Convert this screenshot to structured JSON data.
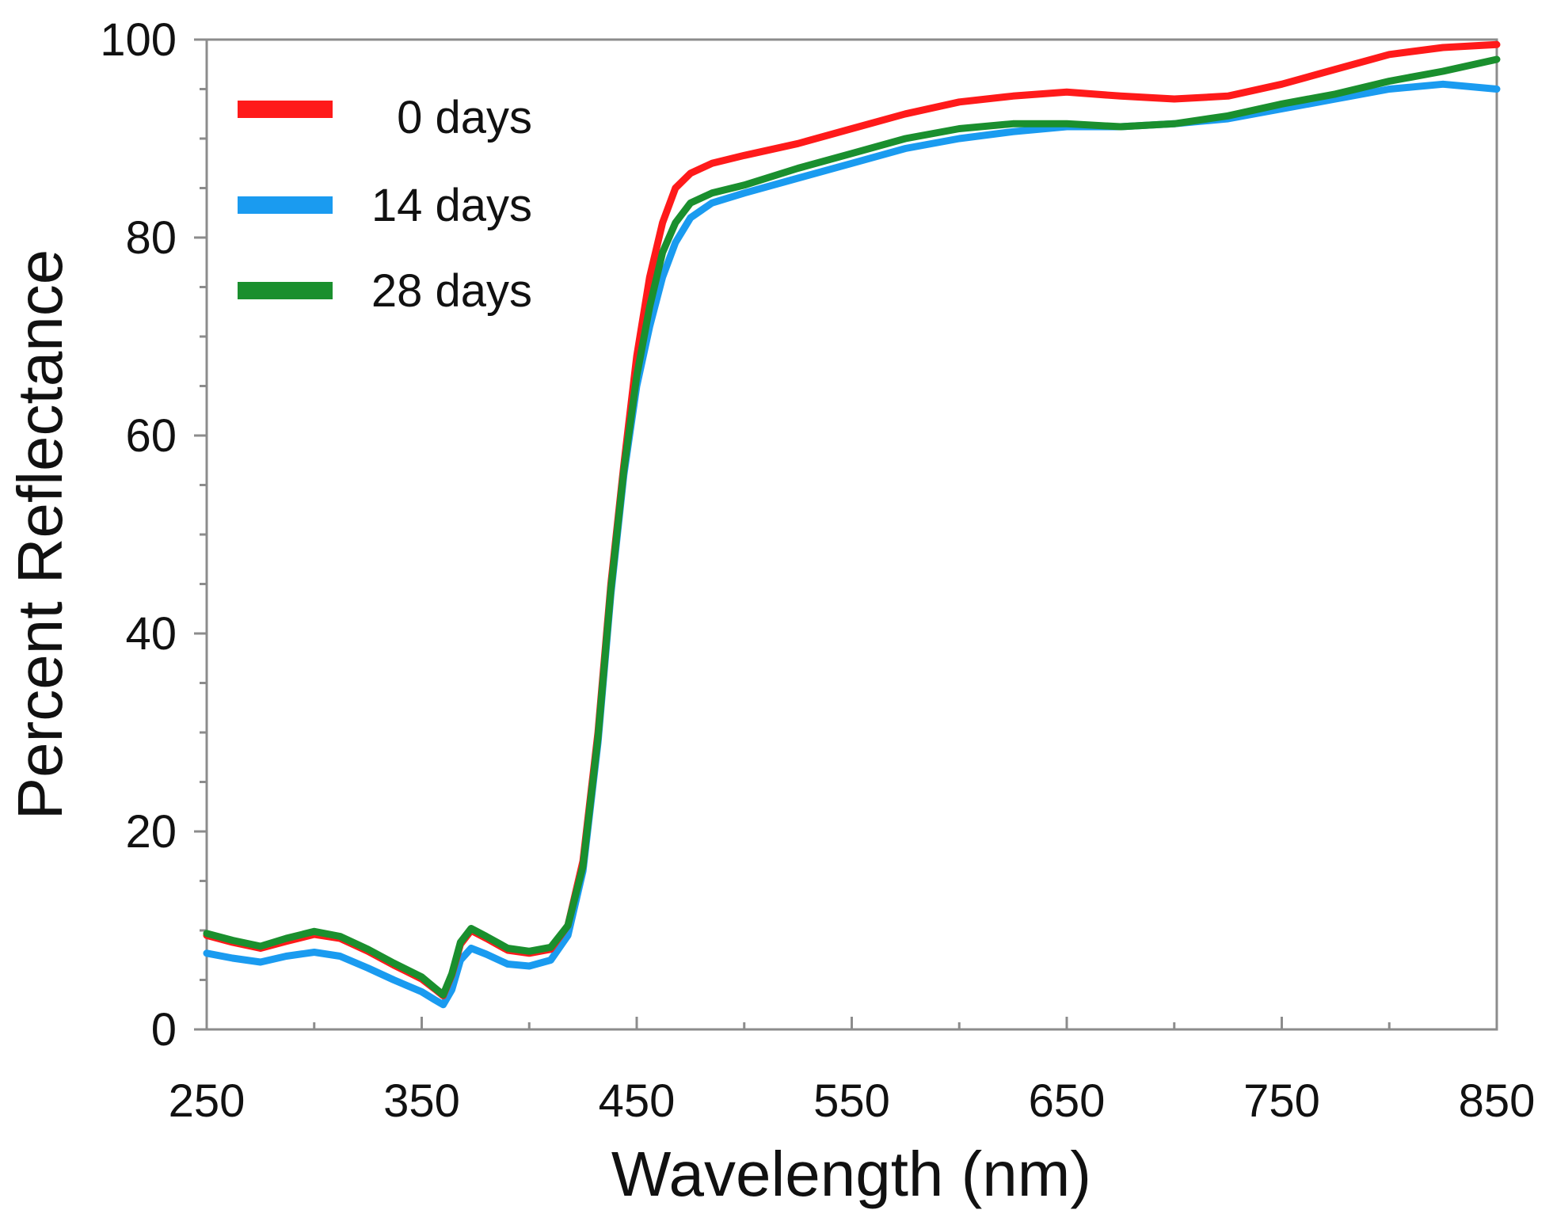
{
  "chart_data": {
    "type": "line",
    "title": "",
    "xlabel": "Wavelength (nm)",
    "ylabel": "Percent Reflectance",
    "xlim": [
      250,
      850
    ],
    "ylim": [
      0,
      100
    ],
    "xticks": [
      250,
      350,
      450,
      550,
      650,
      750,
      850
    ],
    "xtick_labels": [
      "250",
      "350",
      "450",
      "550",
      "650",
      "750",
      "850"
    ],
    "yticks": [
      0,
      20,
      40,
      60,
      80,
      100
    ],
    "ytick_labels": [
      "0",
      "20",
      "40",
      "60",
      "80",
      "100"
    ],
    "legend_position": "top-left",
    "x": [
      250,
      262,
      275,
      287,
      300,
      312,
      325,
      337,
      350,
      356,
      360,
      364,
      368,
      373,
      380,
      390,
      400,
      410,
      418,
      425,
      432,
      438,
      444,
      450,
      456,
      462,
      468,
      475,
      485,
      500,
      525,
      550,
      575,
      600,
      625,
      650,
      675,
      700,
      725,
      750,
      775,
      800,
      825,
      850
    ],
    "series": [
      {
        "name": "0 days",
        "label": " 0 days",
        "color": "#ff1a1a",
        "values": [
          9.5,
          8.8,
          8.2,
          8.9,
          9.6,
          9.2,
          7.9,
          6.5,
          5.1,
          4.1,
          3.4,
          5.5,
          8.6,
          10.0,
          9.2,
          8.0,
          7.7,
          8.1,
          10.5,
          17.0,
          30.0,
          45.0,
          57.0,
          68.0,
          76.0,
          81.5,
          85.0,
          86.5,
          87.5,
          88.3,
          89.5,
          91.0,
          92.5,
          93.7,
          94.3,
          94.7,
          94.3,
          94.0,
          94.3,
          95.5,
          97.0,
          98.5,
          99.2,
          99.5
        ]
      },
      {
        "name": "14 days",
        "label": "14 days",
        "color": "#1a9bf0",
        "values": [
          7.7,
          7.2,
          6.8,
          7.4,
          7.8,
          7.4,
          6.2,
          5.0,
          3.8,
          3.0,
          2.5,
          4.0,
          7.0,
          8.2,
          7.6,
          6.6,
          6.4,
          7.0,
          9.5,
          16.0,
          29.0,
          44.0,
          56.0,
          65.0,
          71.0,
          76.0,
          79.5,
          82.0,
          83.5,
          84.5,
          86.0,
          87.5,
          89.0,
          90.0,
          90.7,
          91.2,
          91.2,
          91.5,
          92.0,
          93.0,
          94.0,
          95.0,
          95.5,
          95.0
        ]
      },
      {
        "name": "28 days",
        "label": "28 days",
        "color": "#1a8f2e",
        "values": [
          9.7,
          9.0,
          8.4,
          9.2,
          9.9,
          9.4,
          8.1,
          6.7,
          5.3,
          4.2,
          3.5,
          5.6,
          8.8,
          10.2,
          9.4,
          8.2,
          7.9,
          8.3,
          10.5,
          16.5,
          29.5,
          44.5,
          56.5,
          66.0,
          73.0,
          78.5,
          81.5,
          83.5,
          84.5,
          85.3,
          87.0,
          88.5,
          90.0,
          91.0,
          91.5,
          91.5,
          91.2,
          91.5,
          92.3,
          93.5,
          94.5,
          95.8,
          96.8,
          98.0
        ]
      }
    ]
  }
}
